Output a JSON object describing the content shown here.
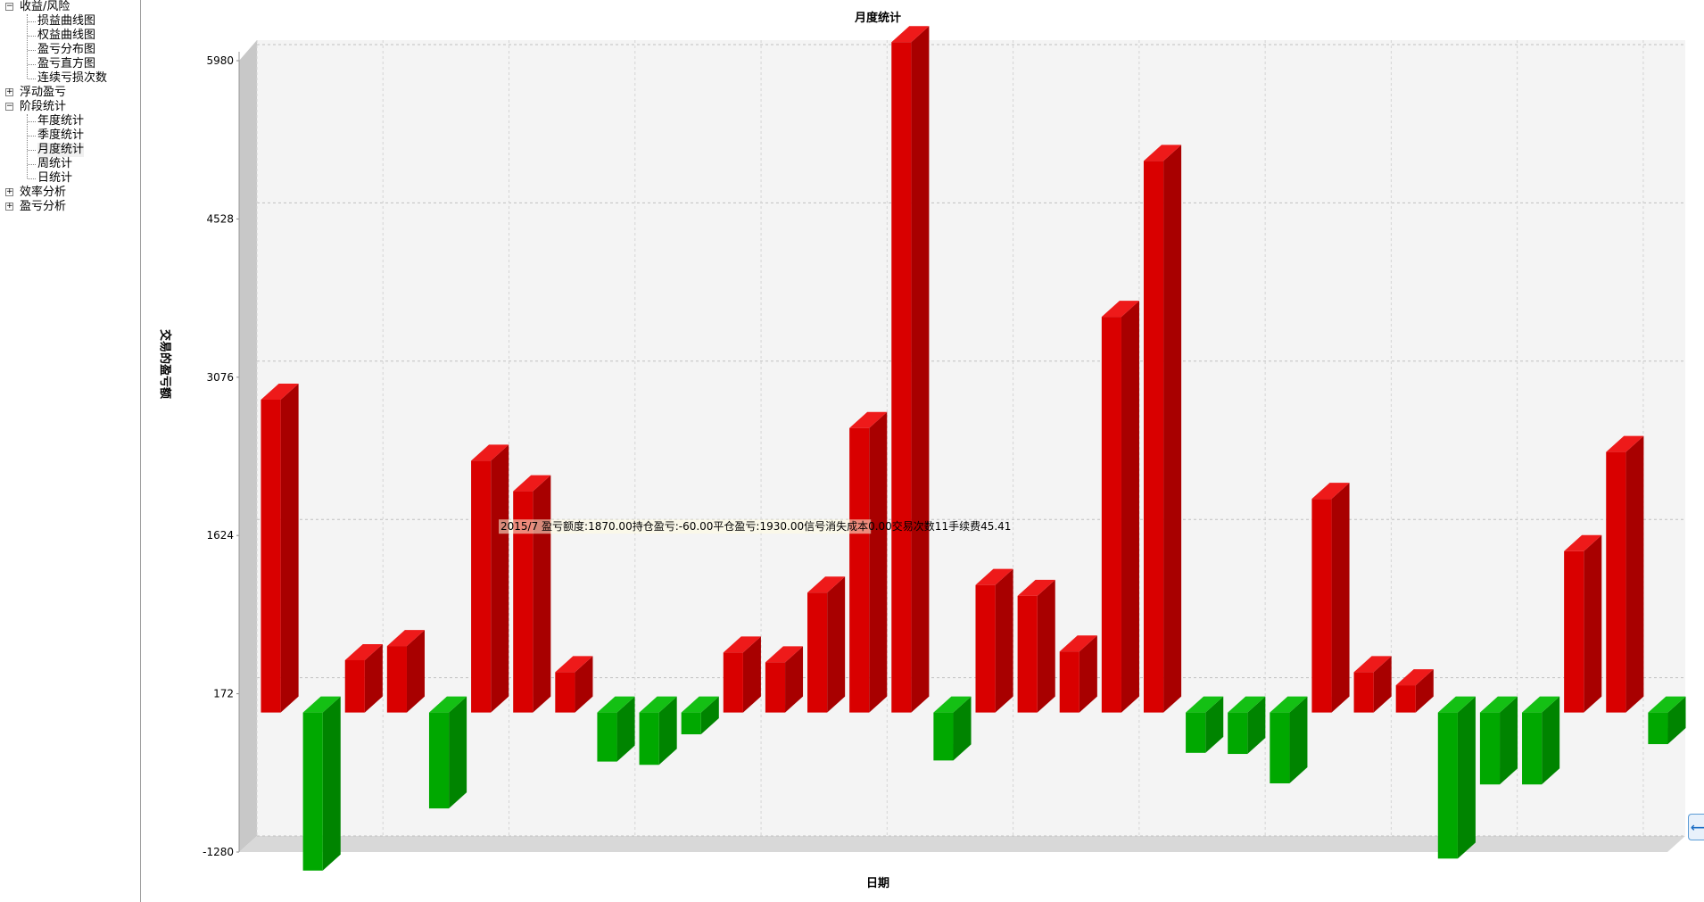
{
  "sidebar": {
    "groups": [
      {
        "label": "收益/风险",
        "expander": "⊟",
        "children": [
          "损益曲线图",
          "权益曲线图",
          "盈亏分布图",
          "盈亏直方图",
          "连续亏损次数"
        ]
      },
      {
        "label": "浮动盈亏",
        "expander": "⊞",
        "children": []
      },
      {
        "label": "阶段统计",
        "expander": "⊟",
        "children": [
          "年度统计",
          "季度统计",
          "月度统计",
          "周统计",
          "日统计"
        ]
      },
      {
        "label": "效率分析",
        "expander": "⊞",
        "children": []
      },
      {
        "label": "盈亏分析",
        "expander": "⊞",
        "children": []
      }
    ],
    "selected": "月度统计"
  },
  "chart_data": {
    "type": "bar",
    "title": "月度统计",
    "xlabel": "日期",
    "ylabel": "交易的盈亏额",
    "yticks": [
      -1280,
      172,
      1624,
      3076,
      4528,
      5980
    ],
    "ylim": [
      -1280,
      5980
    ],
    "baseline": 0,
    "grid": true,
    "values": [
      2870,
      -1450,
      480,
      610,
      -880,
      2310,
      2030,
      370,
      -450,
      -480,
      -200,
      550,
      460,
      1100,
      2610,
      6150,
      -440,
      1170,
      1070,
      560,
      3630,
      5060,
      -370,
      -380,
      -650,
      1960,
      370,
      250,
      -1340,
      -660,
      -660,
      1480,
      2390,
      -290
    ],
    "positive_color": "#d90000",
    "negative_color": "#00a800",
    "tooltip": "2015/7 盈亏额度:1870.00持仓盈亏:-60.00平仓盈亏:1930.00信号消失成本0.00交易次数11手续费45.41"
  }
}
